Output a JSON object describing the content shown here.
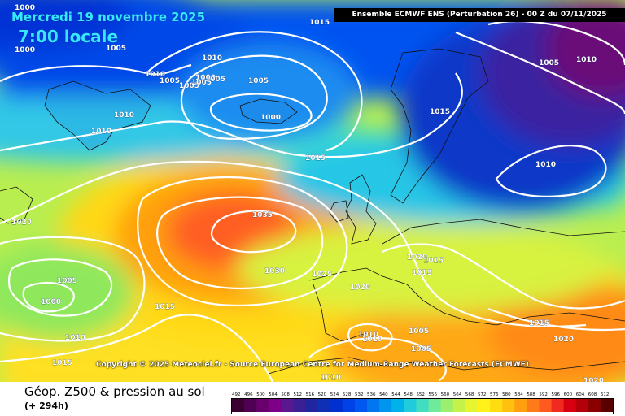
{
  "header": {
    "date": "Mercredi 19 novembre 2025",
    "time": "7:00 locale",
    "model": "Ensemble ECMWF ENS  (Perturbation 26)  -  00 Z du 07/11/2025"
  },
  "copyright": "Copyright © 2025 Meteociel.fr - Source European Centre for Medium-Range Weather Forecasts (ECMWF)",
  "footer": {
    "title": "Géop. Z500 & pression au sol",
    "lead": "(+ 294h)"
  },
  "legend": {
    "values": [
      "492",
      "496",
      "500",
      "504",
      "508",
      "512",
      "516",
      "520",
      "524",
      "528",
      "532",
      "536",
      "540",
      "544",
      "548",
      "552",
      "556",
      "560",
      "564",
      "568",
      "572",
      "576",
      "580",
      "584",
      "588",
      "592",
      "596",
      "600",
      "604",
      "608",
      "612"
    ],
    "colors": [
      "#3a0031",
      "#500052",
      "#6a006e",
      "#7f0088",
      "#5a1890",
      "#3a1f95",
      "#20269e",
      "#0f30b4",
      "#0030d0",
      "#0042e6",
      "#0058f0",
      "#0077ee",
      "#0095ee",
      "#00b2ea",
      "#20ccdc",
      "#40ddc0",
      "#6fe99a",
      "#9cef6e",
      "#c4f249",
      "#e6f530",
      "#fff21a",
      "#ffdd10",
      "#ffc010",
      "#ff9f10",
      "#ff7a18",
      "#ff5a20",
      "#f02a20",
      "#d80010",
      "#b40008",
      "#8a0000",
      "#580000"
    ]
  },
  "pressure_labels": [
    {
      "text": "1000"
    },
    {
      "text": "1000"
    },
    {
      "text": "1005"
    },
    {
      "text": "1000"
    },
    {
      "text": "1010"
    },
    {
      "text": "1010"
    },
    {
      "text": "1005"
    },
    {
      "text": "1005"
    },
    {
      "text": "1005"
    },
    {
      "text": "1005"
    },
    {
      "text": "1015"
    },
    {
      "text": "1010"
    },
    {
      "text": "1010"
    },
    {
      "text": "1000"
    },
    {
      "text": "1015"
    },
    {
      "text": "1015"
    },
    {
      "text": "1010"
    },
    {
      "text": "1005"
    },
    {
      "text": "1010"
    },
    {
      "text": "1020"
    },
    {
      "text": "1035"
    },
    {
      "text": "1030"
    },
    {
      "text": "1025"
    },
    {
      "text": "1005"
    },
    {
      "text": "1000"
    },
    {
      "text": "1015"
    },
    {
      "text": "1010"
    },
    {
      "text": "1015"
    },
    {
      "text": "1020"
    },
    {
      "text": "1020"
    },
    {
      "text": "1015"
    },
    {
      "text": "1015"
    },
    {
      "text": "1010"
    },
    {
      "text": "1005"
    },
    {
      "text": "1005"
    },
    {
      "text": "1010"
    },
    {
      "text": "1010"
    },
    {
      "text": "1015"
    },
    {
      "text": "1020"
    },
    {
      "text": "1020"
    },
    {
      "text": "1005"
    }
  ]
}
